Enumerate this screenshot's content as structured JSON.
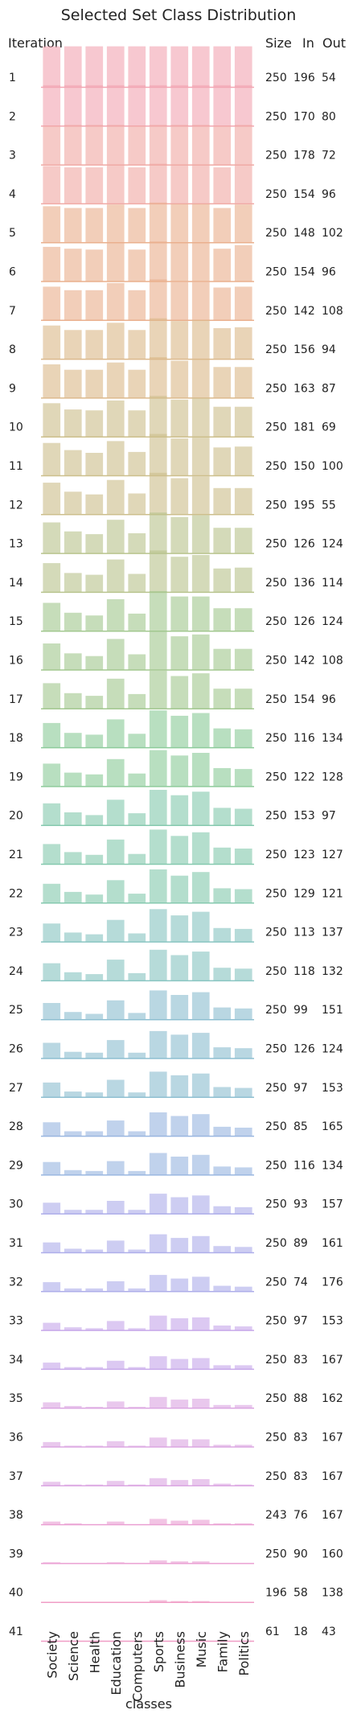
{
  "chart_data": {
    "type": "bar",
    "title": "Selected Set Class Distribution",
    "xlabel": "classes",
    "ylabel": "Iteration",
    "categories": [
      "Society",
      "Science",
      "Health",
      "Education",
      "Computers",
      "Sports",
      "Business",
      "Music",
      "Family",
      "Politics"
    ],
    "columns": {
      "size": "Size",
      "in": "In",
      "out": "Out"
    },
    "iterations": [
      {
        "label": "1",
        "size": "250",
        "in": "196",
        "out": "54",
        "values": [
          0.9,
          0.9,
          0.9,
          0.9,
          0.9,
          0.9,
          0.9,
          0.9,
          0.9,
          0.9
        ]
      },
      {
        "label": "2",
        "size": "250",
        "in": "170",
        "out": "80",
        "values": [
          0.9,
          0.9,
          0.9,
          0.9,
          0.9,
          0.9,
          0.9,
          0.9,
          0.9,
          0.9
        ]
      },
      {
        "label": "3",
        "size": "250",
        "in": "178",
        "out": "72",
        "values": [
          0.87,
          0.88,
          0.88,
          0.88,
          0.87,
          0.88,
          0.88,
          0.88,
          0.87,
          0.88
        ]
      },
      {
        "label": "4",
        "size": "250",
        "in": "154",
        "out": "96",
        "values": [
          0.83,
          0.8,
          0.8,
          0.85,
          0.8,
          0.88,
          0.86,
          0.86,
          0.8,
          0.85
        ]
      },
      {
        "label": "5",
        "size": "250",
        "in": "148",
        "out": "102",
        "values": [
          0.8,
          0.76,
          0.76,
          0.84,
          0.76,
          0.88,
          0.85,
          0.85,
          0.76,
          0.84
        ]
      },
      {
        "label": "6",
        "size": "250",
        "in": "154",
        "out": "96",
        "values": [
          0.76,
          0.72,
          0.7,
          0.84,
          0.7,
          0.88,
          0.84,
          0.84,
          0.72,
          0.8
        ]
      },
      {
        "label": "7",
        "size": "250",
        "in": "142",
        "out": "108",
        "values": [
          0.74,
          0.66,
          0.66,
          0.82,
          0.66,
          0.9,
          0.84,
          0.84,
          0.72,
          0.74
        ]
      },
      {
        "label": "8",
        "size": "250",
        "in": "156",
        "out": "94",
        "values": [
          0.74,
          0.64,
          0.64,
          0.8,
          0.64,
          0.9,
          0.84,
          0.86,
          0.68,
          0.7
        ]
      },
      {
        "label": "9",
        "size": "250",
        "in": "163",
        "out": "87",
        "values": [
          0.74,
          0.62,
          0.62,
          0.78,
          0.62,
          0.9,
          0.82,
          0.86,
          0.68,
          0.68
        ]
      },
      {
        "label": "10",
        "size": "250",
        "in": "181",
        "out": "69",
        "values": [
          0.74,
          0.6,
          0.58,
          0.8,
          0.58,
          0.9,
          0.82,
          0.86,
          0.66,
          0.66
        ]
      },
      {
        "label": "11",
        "size": "250",
        "in": "150",
        "out": "100",
        "values": [
          0.72,
          0.56,
          0.5,
          0.76,
          0.52,
          0.92,
          0.82,
          0.84,
          0.62,
          0.64
        ]
      },
      {
        "label": "12",
        "size": "250",
        "in": "195",
        "out": "55",
        "values": [
          0.7,
          0.5,
          0.44,
          0.76,
          0.46,
          0.92,
          0.8,
          0.84,
          0.58,
          0.58
        ]
      },
      {
        "label": "13",
        "size": "250",
        "in": "126",
        "out": "124",
        "values": [
          0.68,
          0.48,
          0.42,
          0.74,
          0.44,
          0.9,
          0.8,
          0.84,
          0.56,
          0.56
        ]
      },
      {
        "label": "14",
        "size": "250",
        "in": "136",
        "out": "114",
        "values": [
          0.64,
          0.42,
          0.38,
          0.72,
          0.4,
          0.92,
          0.78,
          0.82,
          0.52,
          0.54
        ]
      },
      {
        "label": "15",
        "size": "250",
        "in": "126",
        "out": "124",
        "values": [
          0.62,
          0.4,
          0.34,
          0.7,
          0.38,
          0.88,
          0.76,
          0.76,
          0.5,
          0.5
        ]
      },
      {
        "label": "16",
        "size": "250",
        "in": "142",
        "out": "108",
        "values": [
          0.58,
          0.36,
          0.3,
          0.68,
          0.34,
          0.86,
          0.74,
          0.78,
          0.46,
          0.46
        ]
      },
      {
        "label": "17",
        "size": "250",
        "in": "154",
        "out": "96",
        "values": [
          0.56,
          0.34,
          0.28,
          0.66,
          0.32,
          0.84,
          0.72,
          0.78,
          0.44,
          0.44
        ]
      },
      {
        "label": "18",
        "size": "250",
        "in": "116",
        "out": "134",
        "values": [
          0.54,
          0.32,
          0.28,
          0.62,
          0.3,
          0.82,
          0.7,
          0.76,
          0.42,
          0.4
        ]
      },
      {
        "label": "19",
        "size": "250",
        "in": "122",
        "out": "128",
        "values": [
          0.5,
          0.3,
          0.26,
          0.6,
          0.28,
          0.8,
          0.68,
          0.74,
          0.4,
          0.38
        ]
      },
      {
        "label": "20",
        "size": "250",
        "in": "153",
        "out": "97",
        "values": [
          0.48,
          0.28,
          0.22,
          0.56,
          0.26,
          0.78,
          0.66,
          0.74,
          0.38,
          0.36
        ]
      },
      {
        "label": "21",
        "size": "250",
        "in": "123",
        "out": "127",
        "values": [
          0.44,
          0.26,
          0.2,
          0.54,
          0.22,
          0.76,
          0.62,
          0.7,
          0.36,
          0.34
        ]
      },
      {
        "label": "22",
        "size": "250",
        "in": "129",
        "out": "121",
        "values": [
          0.42,
          0.24,
          0.18,
          0.5,
          0.2,
          0.74,
          0.6,
          0.68,
          0.32,
          0.3
        ]
      },
      {
        "label": "23",
        "size": "250",
        "in": "113",
        "out": "137",
        "values": [
          0.4,
          0.2,
          0.16,
          0.48,
          0.18,
          0.72,
          0.58,
          0.66,
          0.3,
          0.28
        ]
      },
      {
        "label": "24",
        "size": "250",
        "in": "118",
        "out": "132",
        "values": [
          0.38,
          0.18,
          0.14,
          0.46,
          0.16,
          0.68,
          0.56,
          0.64,
          0.28,
          0.26
        ]
      },
      {
        "label": "25",
        "size": "250",
        "in": "99",
        "out": "151",
        "values": [
          0.36,
          0.16,
          0.12,
          0.42,
          0.14,
          0.64,
          0.54,
          0.6,
          0.26,
          0.24
        ]
      },
      {
        "label": "26",
        "size": "250",
        "in": "126",
        "out": "124",
        "values": [
          0.34,
          0.14,
          0.12,
          0.4,
          0.12,
          0.6,
          0.52,
          0.56,
          0.24,
          0.22
        ]
      },
      {
        "label": "27",
        "size": "250",
        "in": "97",
        "out": "153",
        "values": [
          0.32,
          0.12,
          0.1,
          0.38,
          0.1,
          0.56,
          0.48,
          0.52,
          0.22,
          0.2
        ]
      },
      {
        "label": "28",
        "size": "250",
        "in": "85",
        "out": "165",
        "values": [
          0.3,
          0.1,
          0.1,
          0.34,
          0.1,
          0.52,
          0.44,
          0.48,
          0.2,
          0.18
        ]
      },
      {
        "label": "29",
        "size": "250",
        "in": "116",
        "out": "134",
        "values": [
          0.28,
          0.1,
          0.08,
          0.3,
          0.08,
          0.48,
          0.4,
          0.44,
          0.18,
          0.16
        ]
      },
      {
        "label": "30",
        "size": "250",
        "in": "93",
        "out": "157",
        "values": [
          0.24,
          0.08,
          0.08,
          0.28,
          0.08,
          0.44,
          0.36,
          0.4,
          0.16,
          0.14
        ]
      },
      {
        "label": "31",
        "size": "250",
        "in": "89",
        "out": "161",
        "values": [
          0.22,
          0.08,
          0.06,
          0.26,
          0.06,
          0.4,
          0.32,
          0.36,
          0.14,
          0.12
        ]
      },
      {
        "label": "32",
        "size": "250",
        "in": "74",
        "out": "176",
        "values": [
          0.2,
          0.06,
          0.06,
          0.22,
          0.06,
          0.36,
          0.28,
          0.32,
          0.12,
          0.1
        ]
      },
      {
        "label": "33",
        "size": "250",
        "in": "97",
        "out": "153",
        "values": [
          0.16,
          0.06,
          0.04,
          0.2,
          0.04,
          0.32,
          0.26,
          0.28,
          0.1,
          0.08
        ]
      },
      {
        "label": "34",
        "size": "250",
        "in": "83",
        "out": "167",
        "values": [
          0.14,
          0.04,
          0.04,
          0.18,
          0.04,
          0.28,
          0.22,
          0.24,
          0.08,
          0.08
        ]
      },
      {
        "label": "35",
        "size": "250",
        "in": "88",
        "out": "162",
        "values": [
          0.12,
          0.04,
          0.02,
          0.14,
          0.02,
          0.24,
          0.18,
          0.2,
          0.06,
          0.06
        ]
      },
      {
        "label": "36",
        "size": "250",
        "in": "83",
        "out": "167",
        "values": [
          0.1,
          0.02,
          0.02,
          0.12,
          0.02,
          0.2,
          0.16,
          0.16,
          0.04,
          0.04
        ]
      },
      {
        "label": "37",
        "size": "250",
        "in": "83",
        "out": "167",
        "values": [
          0.08,
          0.02,
          0.02,
          0.1,
          0.02,
          0.16,
          0.12,
          0.14,
          0.04,
          0.02
        ]
      },
      {
        "label": "38",
        "size": "243",
        "in": "76",
        "out": "167",
        "values": [
          0.06,
          0.02,
          0.0,
          0.06,
          0.0,
          0.12,
          0.08,
          0.1,
          0.02,
          0.02
        ]
      },
      {
        "label": "39",
        "size": "250",
        "in": "90",
        "out": "160",
        "values": [
          0.02,
          0.0,
          0.0,
          0.02,
          0.0,
          0.06,
          0.04,
          0.04,
          0.0,
          0.0
        ]
      },
      {
        "label": "40",
        "size": "196",
        "in": "58",
        "out": "138",
        "values": [
          0.0,
          0.0,
          0.0,
          0.0,
          0.0,
          0.04,
          0.02,
          0.02,
          0.0,
          0.0
        ]
      },
      {
        "label": "41",
        "size": "61",
        "in": "18",
        "out": "43",
        "values": [
          0.0,
          0.0,
          0.0,
          0.0,
          0.0,
          0.0,
          0.0,
          0.0,
          0.0,
          0.0
        ]
      }
    ],
    "row_colors": [
      "#f2a7b3",
      "#f0aaa5",
      "#eab08e",
      "#dcb98b",
      "#cdbf8c",
      "#b9c48e",
      "#a3c890",
      "#8dcb9a",
      "#86c9af",
      "#89c5c2",
      "#8ebfd1",
      "#99b6e0",
      "#aeaeea",
      "#c7a8ea",
      "#dba6e2",
      "#ea9fd3",
      "#f09dc6"
    ],
    "accent_color": "#d9534f",
    "grid": false,
    "legend": "none"
  }
}
